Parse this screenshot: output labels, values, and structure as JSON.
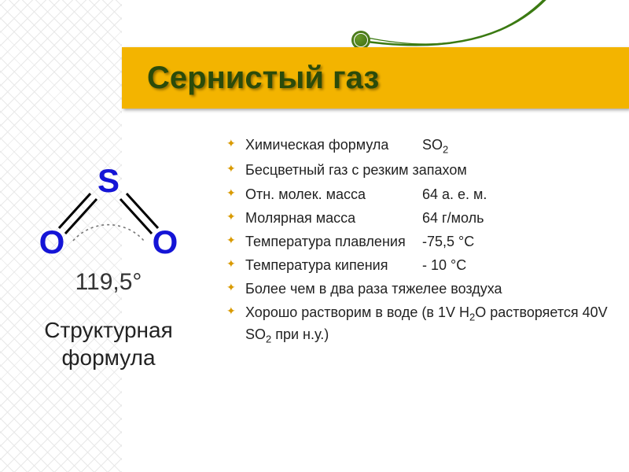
{
  "title": "Сернистый газ",
  "colors": {
    "band": "#f3b400",
    "titleText": "#2b4b0a",
    "atomBlue": "#1414d6",
    "bondBlack": "#000000",
    "arcGray": "#777777",
    "decorGreen": "#3b7a12"
  },
  "structure": {
    "atoms": {
      "S": "S",
      "O_left": "O",
      "O_right": "O"
    },
    "angleLabel": "119,5°",
    "captionLine1": "Структурная",
    "captionLine2": "формула"
  },
  "properties": [
    {
      "type": "row",
      "label": "Химическая формула",
      "value_html": "SO<sub>2</sub>"
    },
    {
      "type": "text",
      "text": "Бесцветный газ с резким запахом"
    },
    {
      "type": "row",
      "label": "Отн. молек. масса",
      "value": "64 а. е. м."
    },
    {
      "type": "row",
      "label": "Молярная масса",
      "value": "64 г/моль"
    },
    {
      "type": "row",
      "label": "Температура плавления",
      "value": "-75,5 °C"
    },
    {
      "type": "row",
      "label": "Температура кипения",
      "value": "- 10 °C"
    },
    {
      "type": "text",
      "text": "Более чем в два раза тяжелее воздуха"
    },
    {
      "type": "html",
      "html": "Хорошо растворим в воде (в 1V H<sub>2</sub>O растворяется 40V SO<sub>2</sub> при н.у.)"
    }
  ],
  "style": {
    "titleFontSize": 40,
    "listFontSize": 18,
    "angleFontSize": 30,
    "captionFontSize": 28
  }
}
